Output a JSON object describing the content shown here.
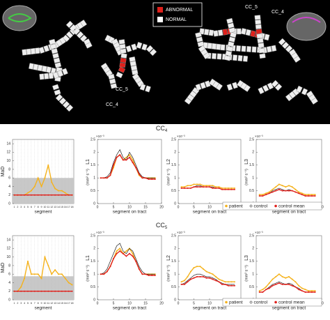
{
  "overview": {
    "legend": [
      "ABNORMAL",
      "NORMAL"
    ],
    "labels": [
      "CC_5",
      "CC_4",
      "CC_5",
      "CC_4"
    ]
  },
  "row_titles": [
    {
      "text": "CC",
      "sub": "4"
    },
    {
      "text": "CC",
      "sub": "5"
    }
  ],
  "chart_data": [
    {
      "type": "line",
      "x_label": "segment",
      "y_label": "MaD",
      "categories": [
        "1",
        "2",
        "3",
        "4",
        "5",
        "6",
        "7",
        "8",
        "9",
        "10",
        "11",
        "12",
        "13",
        "14",
        "15",
        "16",
        "17",
        "18"
      ],
      "ylim": [
        0,
        15
      ],
      "yticks": [
        0,
        2,
        4,
        6,
        8,
        10,
        12,
        14
      ],
      "band": [
        0,
        6
      ],
      "grid": true,
      "series": [
        {
          "name": "patient",
          "color": "#f5b21b",
          "values": [
            2,
            2,
            2,
            2,
            2.5,
            3,
            4,
            6,
            4,
            6,
            9,
            5,
            3.5,
            3,
            3,
            2.5,
            2,
            2
          ]
        },
        {
          "name": "control mean",
          "color": "#e0201b",
          "values": [
            2,
            2,
            2,
            2,
            2,
            2,
            2,
            2,
            2,
            2,
            2,
            2,
            2,
            2,
            2,
            2,
            2,
            2
          ]
        }
      ]
    },
    {
      "type": "line",
      "x_label": "segment on tract",
      "y_label": "L1",
      "y_unit": "(mm² s⁻¹)",
      "y_scale_label": "×10⁻³",
      "x": [
        1,
        2,
        3,
        4,
        5,
        6,
        7,
        8,
        9,
        10,
        11,
        12,
        13,
        14,
        15,
        16,
        17,
        18
      ],
      "xlim": [
        0,
        20
      ],
      "xticks": [
        0,
        5,
        10,
        15,
        20
      ],
      "ylim": [
        0,
        2.5
      ],
      "yticks": [
        0,
        0.5,
        1,
        1.5,
        2,
        2.5
      ],
      "series": [
        {
          "name": "patient",
          "color": "#f5b21b",
          "values": [
            1.0,
            1.0,
            1.0,
            1.1,
            1.4,
            1.8,
            1.9,
            1.7,
            1.8,
            1.9,
            1.7,
            1.4,
            1.1,
            1.0,
            1.0,
            1.0,
            1.0,
            1.0
          ]
        },
        {
          "name": "control",
          "color": "#000000",
          "values": [
            1.0,
            1.0,
            1.05,
            1.2,
            1.6,
            1.9,
            2.1,
            1.8,
            1.7,
            2.0,
            1.8,
            1.5,
            1.2,
            1.05,
            1.0,
            1.0,
            1.0,
            1.0
          ]
        },
        {
          "name": "control mean",
          "color": "#e0201b",
          "values": [
            1.0,
            1.0,
            1.0,
            1.1,
            1.5,
            1.8,
            1.9,
            1.7,
            1.7,
            1.8,
            1.6,
            1.4,
            1.15,
            1.0,
            1.0,
            0.95,
            0.95,
            0.95
          ]
        }
      ]
    },
    {
      "type": "line",
      "x_label": "segment on tract",
      "y_label": "L2",
      "y_unit": "(mm² s⁻¹)",
      "y_scale_label": "×10⁻³",
      "x": [
        1,
        2,
        3,
        4,
        5,
        6,
        7,
        8,
        9,
        10,
        11,
        12,
        13,
        14,
        15,
        16,
        17,
        18
      ],
      "xlim": [
        0,
        20
      ],
      "xticks": [
        0,
        5,
        10,
        15,
        20
      ],
      "ylim": [
        0,
        2.5
      ],
      "yticks": [
        0,
        0.5,
        1,
        1.5,
        2,
        2.5
      ],
      "series": [
        {
          "name": "patient",
          "color": "#f5b21b",
          "values": [
            0.65,
            0.65,
            0.7,
            0.7,
            0.75,
            0.75,
            0.75,
            0.7,
            0.7,
            0.7,
            0.7,
            0.65,
            0.65,
            0.6,
            0.6,
            0.6,
            0.6,
            0.6
          ]
        },
        {
          "name": "control",
          "color": "#000000",
          "values": [
            0.6,
            0.6,
            0.6,
            0.6,
            0.65,
            0.7,
            0.7,
            0.65,
            0.65,
            0.65,
            0.65,
            0.6,
            0.6,
            0.55,
            0.55,
            0.55,
            0.55,
            0.55
          ]
        },
        {
          "name": "control mean",
          "color": "#e0201b",
          "values": [
            0.6,
            0.6,
            0.6,
            0.6,
            0.65,
            0.65,
            0.65,
            0.65,
            0.65,
            0.65,
            0.6,
            0.6,
            0.6,
            0.55,
            0.55,
            0.55,
            0.55,
            0.55
          ]
        }
      ]
    },
    {
      "type": "line",
      "x_label": "segment on tract",
      "y_label": "L3",
      "y_unit": "(mm² s⁻¹)",
      "y_scale_label": "×10⁻³",
      "x": [
        1,
        2,
        3,
        4,
        5,
        6,
        7,
        8,
        9,
        10,
        11,
        12,
        13,
        14,
        15,
        16,
        17,
        18
      ],
      "xlim": [
        0,
        20
      ],
      "xticks": [
        0,
        5,
        10,
        15,
        20
      ],
      "ylim": [
        0,
        2.5
      ],
      "yticks": [
        0,
        0.5,
        1,
        1.5,
        2,
        2.5
      ],
      "legend": "lower-right",
      "series": [
        {
          "name": "patient",
          "color": "#f5b21b",
          "values": [
            0.35,
            0.35,
            0.4,
            0.45,
            0.55,
            0.65,
            0.75,
            0.7,
            0.65,
            0.7,
            0.65,
            0.55,
            0.45,
            0.4,
            0.35,
            0.35,
            0.35,
            0.35
          ]
        },
        {
          "name": "control",
          "color": "#000000",
          "values": [
            0.3,
            0.3,
            0.35,
            0.4,
            0.5,
            0.55,
            0.6,
            0.55,
            0.5,
            0.55,
            0.5,
            0.45,
            0.4,
            0.35,
            0.3,
            0.3,
            0.3,
            0.3
          ]
        },
        {
          "name": "control mean",
          "color": "#e0201b",
          "values": [
            0.3,
            0.3,
            0.35,
            0.4,
            0.45,
            0.5,
            0.55,
            0.5,
            0.5,
            0.5,
            0.5,
            0.45,
            0.4,
            0.35,
            0.3,
            0.3,
            0.3,
            0.3
          ]
        }
      ]
    },
    {
      "type": "line",
      "x_label": "segment",
      "y_label": "MaD",
      "categories": [
        "1",
        "2",
        "3",
        "4",
        "5",
        "6",
        "7",
        "8",
        "9",
        "10",
        "11",
        "12",
        "13",
        "14",
        "15",
        "16",
        "17",
        "18"
      ],
      "ylim": [
        0,
        15
      ],
      "yticks": [
        0,
        2,
        4,
        6,
        8,
        10,
        12,
        14
      ],
      "band": [
        0,
        5.5
      ],
      "grid": true,
      "series": [
        {
          "name": "patient",
          "color": "#f5b21b",
          "values": [
            2,
            2,
            3,
            5,
            9,
            6,
            6,
            6,
            5,
            10,
            8,
            6,
            7,
            6,
            6,
            5,
            4,
            3.5
          ]
        },
        {
          "name": "control mean",
          "color": "#e0201b",
          "values": [
            2,
            2,
            2,
            2,
            2,
            2,
            2,
            2,
            2,
            2,
            2,
            2,
            2,
            2,
            2,
            2,
            2,
            2
          ]
        }
      ]
    },
    {
      "type": "line",
      "x_label": "segment on tract",
      "y_label": "L1",
      "y_unit": "(mm² s⁻¹)",
      "y_scale_label": "×10⁻³",
      "x": [
        1,
        2,
        3,
        4,
        5,
        6,
        7,
        8,
        9,
        10,
        11,
        12,
        13,
        14,
        15,
        16,
        17,
        18
      ],
      "xlim": [
        0,
        20
      ],
      "xticks": [
        0,
        5,
        10,
        15,
        20
      ],
      "ylim": [
        0,
        2.5
      ],
      "yticks": [
        0,
        0.5,
        1,
        1.5,
        2,
        2.5
      ],
      "series": [
        {
          "name": "patient",
          "color": "#f5b21b",
          "values": [
            1.0,
            1.0,
            1.1,
            1.3,
            1.6,
            1.9,
            2.0,
            1.8,
            1.9,
            2.0,
            1.8,
            1.5,
            1.2,
            1.0,
            1.0,
            1.0,
            1.0,
            1.0
          ]
        },
        {
          "name": "control",
          "color": "#000000",
          "values": [
            1.0,
            1.05,
            1.2,
            1.5,
            1.8,
            2.1,
            2.2,
            1.9,
            1.8,
            2.0,
            1.9,
            1.6,
            1.3,
            1.1,
            1.0,
            1.0,
            1.0,
            1.0
          ]
        },
        {
          "name": "control mean",
          "color": "#e0201b",
          "values": [
            1.0,
            1.0,
            1.1,
            1.3,
            1.6,
            1.8,
            1.9,
            1.8,
            1.7,
            1.8,
            1.7,
            1.5,
            1.2,
            1.0,
            1.0,
            0.95,
            0.95,
            0.95
          ]
        }
      ]
    },
    {
      "type": "line",
      "x_label": "segment on tract",
      "y_label": "L2",
      "y_unit": "(mm² s⁻¹)",
      "y_scale_label": "×10⁻³",
      "x": [
        1,
        2,
        3,
        4,
        5,
        6,
        7,
        8,
        9,
        10,
        11,
        12,
        13,
        14,
        15,
        16,
        17,
        18
      ],
      "xlim": [
        0,
        20
      ],
      "xticks": [
        0,
        5,
        10,
        15,
        20
      ],
      "ylim": [
        0,
        2.5
      ],
      "yticks": [
        0,
        0.5,
        1,
        1.5,
        2,
        2.5
      ],
      "series": [
        {
          "name": "patient",
          "color": "#f5b21b",
          "values": [
            0.7,
            0.75,
            0.9,
            1.1,
            1.25,
            1.3,
            1.3,
            1.2,
            1.1,
            1.05,
            1.0,
            0.9,
            0.8,
            0.75,
            0.7,
            0.7,
            0.7,
            0.7
          ]
        },
        {
          "name": "control",
          "color": "#000000",
          "values": [
            0.6,
            0.65,
            0.75,
            0.85,
            0.95,
            1.0,
            1.0,
            0.95,
            0.9,
            0.9,
            0.85,
            0.8,
            0.7,
            0.65,
            0.6,
            0.6,
            0.6,
            0.6
          ]
        },
        {
          "name": "control mean",
          "color": "#e0201b",
          "values": [
            0.6,
            0.6,
            0.7,
            0.8,
            0.85,
            0.9,
            0.9,
            0.9,
            0.85,
            0.85,
            0.8,
            0.75,
            0.7,
            0.6,
            0.6,
            0.55,
            0.55,
            0.55
          ]
        }
      ]
    },
    {
      "type": "line",
      "x_label": "segment on tract",
      "y_label": "L3",
      "y_unit": "(mm² s⁻¹)",
      "y_scale_label": "×10⁻³",
      "x": [
        1,
        2,
        3,
        4,
        5,
        6,
        7,
        8,
        9,
        10,
        11,
        12,
        13,
        14,
        15,
        16,
        17,
        18
      ],
      "xlim": [
        0,
        20
      ],
      "xticks": [
        0,
        5,
        10,
        15,
        20
      ],
      "ylim": [
        0,
        2.5
      ],
      "yticks": [
        0,
        0.5,
        1,
        1.5,
        2,
        2.5
      ],
      "legend": "lower-right",
      "series": [
        {
          "name": "patient",
          "color": "#f5b21b",
          "values": [
            0.35,
            0.4,
            0.5,
            0.65,
            0.8,
            0.9,
            1.0,
            0.9,
            0.85,
            0.9,
            0.8,
            0.7,
            0.55,
            0.45,
            0.4,
            0.35,
            0.35,
            0.35
          ]
        },
        {
          "name": "control",
          "color": "#000000",
          "values": [
            0.3,
            0.3,
            0.4,
            0.5,
            0.6,
            0.65,
            0.7,
            0.65,
            0.6,
            0.65,
            0.6,
            0.5,
            0.45,
            0.35,
            0.3,
            0.3,
            0.3,
            0.3
          ]
        },
        {
          "name": "control mean",
          "color": "#e0201b",
          "values": [
            0.3,
            0.3,
            0.4,
            0.45,
            0.55,
            0.6,
            0.65,
            0.6,
            0.6,
            0.6,
            0.55,
            0.5,
            0.4,
            0.35,
            0.3,
            0.3,
            0.3,
            0.3
          ]
        }
      ]
    }
  ]
}
